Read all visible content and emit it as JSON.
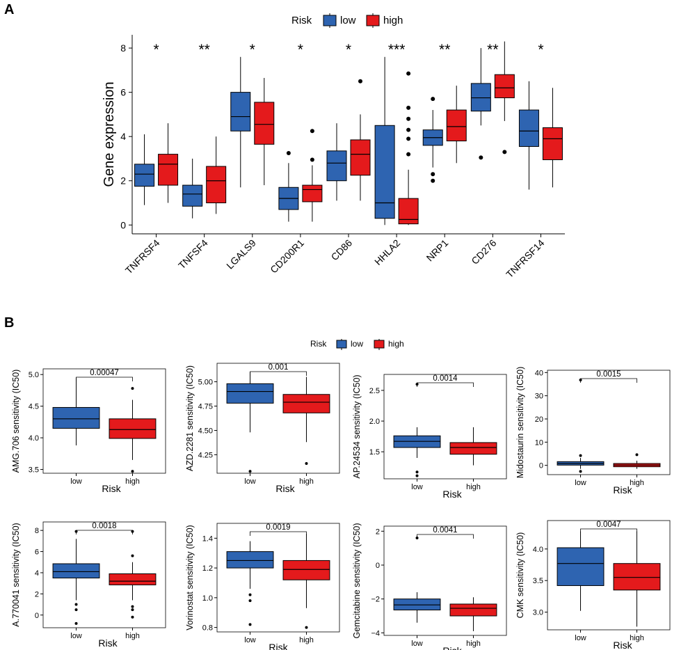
{
  "figure": {
    "panel_a_label": "A",
    "panel_b_label": "B"
  },
  "colors": {
    "low": "#2E64B1",
    "high": "#E41A1C",
    "axis": "#000000"
  },
  "legend": {
    "title": "Risk",
    "low": "low",
    "high": "high"
  },
  "chart_data": [
    {
      "type": "boxplot",
      "id": "panelA",
      "title": "",
      "xlabel": "",
      "ylabel": "Gene expression",
      "ylim": [
        -0.4,
        8.6
      ],
      "yticks": [
        0,
        2,
        4,
        6,
        8
      ],
      "series_names": [
        "low",
        "high"
      ],
      "categories": [
        "TNFRSF4",
        "TNFSF4",
        "LGALS9",
        "CD200R1",
        "CD86",
        "HHLA2",
        "NRP1",
        "CD276",
        "TNFRSF14"
      ],
      "significance": [
        "*",
        "**",
        "*",
        "*",
        "*",
        "***",
        "**",
        "**",
        "*"
      ],
      "boxes": [
        [
          {
            "min": 0.9,
            "q1": 1.75,
            "med": 2.3,
            "q3": 2.75,
            "max": 4.1,
            "out": []
          },
          {
            "min": 1.0,
            "q1": 1.8,
            "med": 2.75,
            "q3": 3.2,
            "max": 4.6,
            "out": []
          }
        ],
        [
          {
            "min": 0.3,
            "q1": 0.85,
            "med": 1.4,
            "q3": 1.8,
            "max": 3.0,
            "out": []
          },
          {
            "min": 0.5,
            "q1": 1.0,
            "med": 2.0,
            "q3": 2.65,
            "max": 4.0,
            "out": []
          }
        ],
        [
          {
            "min": 1.7,
            "q1": 4.25,
            "med": 4.9,
            "q3": 6.0,
            "max": 7.6,
            "out": []
          },
          {
            "min": 1.8,
            "q1": 3.65,
            "med": 4.55,
            "q3": 5.55,
            "max": 6.65,
            "out": []
          }
        ],
        [
          {
            "min": 0.15,
            "q1": 0.7,
            "med": 1.2,
            "q3": 1.7,
            "max": 2.8,
            "out": [
              3.25
            ]
          },
          {
            "min": 0.15,
            "q1": 1.05,
            "med": 1.6,
            "q3": 1.8,
            "max": 2.7,
            "out": [
              2.95,
              4.25
            ]
          }
        ],
        [
          {
            "min": 1.1,
            "q1": 2.0,
            "med": 2.8,
            "q3": 3.35,
            "max": 4.6,
            "out": []
          },
          {
            "min": 1.1,
            "q1": 2.25,
            "med": 3.2,
            "q3": 3.85,
            "max": 5.0,
            "out": [
              6.5
            ]
          }
        ],
        [
          {
            "min": 0.0,
            "q1": 0.3,
            "med": 1.0,
            "q3": 4.5,
            "max": 7.6,
            "out": []
          },
          {
            "min": 0.0,
            "q1": 0.05,
            "med": 0.25,
            "q3": 1.2,
            "max": 2.5,
            "out": [
              3.2,
              3.9,
              4.3,
              4.8,
              5.3,
              6.85
            ]
          }
        ],
        [
          {
            "min": 2.6,
            "q1": 3.6,
            "med": 3.95,
            "q3": 4.3,
            "max": 5.2,
            "out": [
              5.7,
              2.3,
              2.0
            ]
          },
          {
            "min": 2.8,
            "q1": 3.8,
            "med": 4.45,
            "q3": 5.2,
            "max": 6.3,
            "out": []
          }
        ],
        [
          {
            "min": 4.5,
            "q1": 5.15,
            "med": 5.75,
            "q3": 6.4,
            "max": 8.0,
            "out": [
              3.05
            ]
          },
          {
            "min": 4.7,
            "q1": 5.75,
            "med": 6.2,
            "q3": 6.8,
            "max": 8.3,
            "out": [
              3.3
            ]
          }
        ],
        [
          {
            "min": 1.6,
            "q1": 3.55,
            "med": 4.25,
            "q3": 5.2,
            "max": 6.5,
            "out": []
          },
          {
            "min": 1.7,
            "q1": 2.95,
            "med": 3.9,
            "q3": 4.4,
            "max": 6.2,
            "out": []
          }
        ]
      ]
    },
    {
      "type": "boxplot",
      "id": "B1",
      "title": "",
      "xlabel": "Risk",
      "ylabel": "AMG.706 sensitivity (IC50)",
      "categories": [
        "low",
        "high"
      ],
      "ylim": [
        3.44,
        5.09
      ],
      "yticks": [
        3.5,
        4.0,
        4.5,
        5.0
      ],
      "tick_labels": [
        "3.5",
        "4.0",
        "4.5",
        "5.0"
      ],
      "pvalue": "0.00047",
      "boxes": [
        {
          "min": 3.88,
          "q1": 4.15,
          "med": 4.3,
          "q3": 4.48,
          "max": 4.95,
          "out": []
        },
        {
          "min": 3.65,
          "q1": 3.99,
          "med": 4.13,
          "q3": 4.3,
          "max": 4.6,
          "out": [
            4.78,
            3.47
          ]
        }
      ]
    },
    {
      "type": "boxplot",
      "id": "B2",
      "title": "",
      "xlabel": "Risk",
      "ylabel": "AZD.2281 sensitivity (IC50)",
      "categories": [
        "low",
        "high"
      ],
      "ylim": [
        4.06,
        5.19
      ],
      "yticks": [
        4.25,
        4.5,
        4.75,
        5.0
      ],
      "tick_labels": [
        "4.25",
        "4.50",
        "4.75",
        "5.00"
      ],
      "pvalue": "0.001",
      "boxes": [
        {
          "min": 4.48,
          "q1": 4.78,
          "med": 4.9,
          "q3": 4.98,
          "max": 5.1,
          "out": [
            4.08
          ]
        },
        {
          "min": 4.38,
          "q1": 4.68,
          "med": 4.79,
          "q3": 4.87,
          "max": 5.05,
          "out": [
            4.16
          ]
        }
      ]
    },
    {
      "type": "boxplot",
      "id": "B3",
      "title": "",
      "xlabel": "Risk",
      "ylabel": "AP.24534 sensitivity (IC50)",
      "categories": [
        "low",
        "high"
      ],
      "ylim": [
        1.06,
        2.76
      ],
      "yticks": [
        1.5,
        2.0,
        2.5
      ],
      "tick_labels": [
        "1.5",
        "2.0",
        "2.5"
      ],
      "pvalue": "0.0014",
      "boxes": [
        {
          "min": 1.4,
          "q1": 1.57,
          "med": 1.67,
          "q3": 1.76,
          "max": 1.9,
          "out": [
            2.6,
            1.17,
            1.11
          ]
        },
        {
          "min": 1.28,
          "q1": 1.46,
          "med": 1.57,
          "q3": 1.65,
          "max": 1.9,
          "out": []
        }
      ]
    },
    {
      "type": "boxplot",
      "id": "B4",
      "title": "",
      "xlabel": "Risk",
      "ylabel": "Midostaurin sensitivity (IC50)",
      "categories": [
        "low",
        "high"
      ],
      "ylim": [
        -4,
        41
      ],
      "yticks": [
        0,
        10,
        20,
        30,
        40
      ],
      "tick_labels": [
        "0",
        "10",
        "20",
        "30",
        "40"
      ],
      "pvalue": "0.0015",
      "boxes": [
        {
          "min": -1.5,
          "q1": 0.1,
          "med": 0.8,
          "q3": 1.6,
          "max": 3.2,
          "out": [
            36.8,
            4.2,
            -2.6
          ]
        },
        {
          "min": -1.5,
          "q1": -0.6,
          "med": 0.1,
          "q3": 0.8,
          "max": 2.0,
          "out": [
            4.6
          ]
        }
      ]
    },
    {
      "type": "boxplot",
      "id": "B5",
      "title": "",
      "xlabel": "Risk",
      "ylabel": "A.770041 sensitivity (IC50)",
      "categories": [
        "low",
        "high"
      ],
      "ylim": [
        -1.2,
        8.8
      ],
      "yticks": [
        0,
        2,
        4,
        6,
        8
      ],
      "tick_labels": [
        "0",
        "2",
        "4",
        "6",
        "8"
      ],
      "pvalue": "0.0018",
      "boxes": [
        {
          "min": 1.4,
          "q1": 3.5,
          "med": 4.1,
          "q3": 4.85,
          "max": 7.2,
          "out": [
            7.9,
            1.0,
            0.5,
            -0.8
          ]
        },
        {
          "min": 1.4,
          "q1": 2.85,
          "med": 3.2,
          "q3": 3.9,
          "max": 5.0,
          "out": [
            7.9,
            5.6,
            0.8,
            0.5,
            -0.2
          ]
        }
      ]
    },
    {
      "type": "boxplot",
      "id": "B6",
      "title": "",
      "xlabel": "Risk",
      "ylabel": "Vorinostat sensitivity (IC50)",
      "categories": [
        "low",
        "high"
      ],
      "ylim": [
        0.77,
        1.5
      ],
      "yticks": [
        0.8,
        1.0,
        1.2,
        1.4
      ],
      "tick_labels": [
        "0.8",
        "1.0",
        "1.2",
        "1.4"
      ],
      "pvalue": "0.0019",
      "boxes": [
        {
          "min": 1.06,
          "q1": 1.2,
          "med": 1.25,
          "q3": 1.31,
          "max": 1.38,
          "out": [
            1.02,
            0.98,
            0.82
          ]
        },
        {
          "min": 0.93,
          "q1": 1.12,
          "med": 1.19,
          "q3": 1.25,
          "max": 1.43,
          "out": [
            0.8
          ]
        }
      ]
    },
    {
      "type": "boxplot",
      "id": "B7",
      "title": "",
      "xlabel": "Risk",
      "ylabel": "Gemcitabine sensitivity (IC50)",
      "categories": [
        "low",
        "high"
      ],
      "ylim": [
        -4.15,
        2.3
      ],
      "yticks": [
        -4,
        -2,
        0,
        2
      ],
      "tick_labels": [
        "−4",
        "−2",
        "0",
        "2"
      ],
      "pvalue": "0.0041",
      "boxes": [
        {
          "min": -3.4,
          "q1": -2.65,
          "med": -2.35,
          "q3": -2.0,
          "max": -1.6,
          "out": [
            1.6
          ]
        },
        {
          "min": -3.9,
          "q1": -3.0,
          "med": -2.55,
          "q3": -2.3,
          "max": -1.9,
          "out": []
        }
      ]
    },
    {
      "type": "boxplot",
      "id": "B8",
      "title": "",
      "xlabel": "Risk",
      "ylabel": "CMK sensitivity (IC50)",
      "categories": [
        "low",
        "high"
      ],
      "ylim": [
        2.72,
        4.45
      ],
      "yticks": [
        3.0,
        3.5,
        4.0
      ],
      "tick_labels": [
        "3.0",
        "3.5",
        "4.0"
      ],
      "pvalue": "0.0047",
      "boxes": [
        {
          "min": 3.02,
          "q1": 3.42,
          "med": 3.77,
          "q3": 4.02,
          "max": 4.28,
          "out": []
        },
        {
          "min": 2.77,
          "q1": 3.35,
          "med": 3.55,
          "q3": 3.77,
          "max": 4.28,
          "out": []
        }
      ]
    }
  ]
}
